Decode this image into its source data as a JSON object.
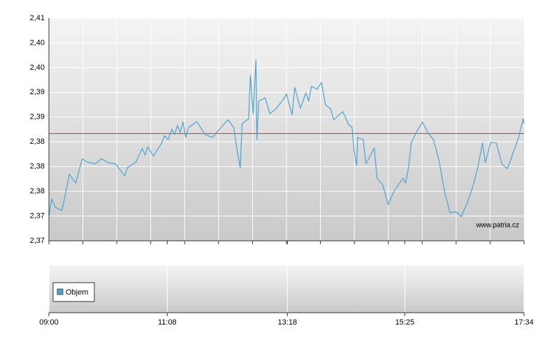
{
  "chart_data": {
    "type": "line",
    "watermark": "www.patria.cz",
    "legend_label": "Objem",
    "reference_line": {
      "value": 2.386,
      "color": "#cc3333"
    },
    "xlim": [
      540,
      1054
    ],
    "xticks": [
      {
        "value": 540,
        "label": "09:00"
      },
      {
        "value": 668,
        "label": "11:08"
      },
      {
        "value": 798,
        "label": "13:18"
      },
      {
        "value": 925,
        "label": "15:25"
      },
      {
        "value": 1054,
        "label": "17:34"
      }
    ],
    "ylim": [
      2.3665,
      2.407
    ],
    "yticks": [
      {
        "value": 2.3665,
        "label": "2,37"
      },
      {
        "value": 2.371,
        "label": "2,37"
      },
      {
        "value": 2.3755,
        "label": "2,38"
      },
      {
        "value": 2.38,
        "label": "2,38"
      },
      {
        "value": 2.3845,
        "label": "2,38"
      },
      {
        "value": 2.389,
        "label": "2,39"
      },
      {
        "value": 2.3935,
        "label": "2,39"
      },
      {
        "value": 2.398,
        "label": "2,40"
      },
      {
        "value": 2.4025,
        "label": "2,40"
      },
      {
        "value": 2.407,
        "label": "2,41"
      }
    ],
    "grid": true,
    "series": [
      {
        "color": "#4aa3d2",
        "x": [
          540,
          543,
          547,
          554,
          560,
          562,
          569,
          576,
          582,
          590,
          597,
          604,
          612,
          622,
          625,
          634,
          641,
          644,
          647,
          653,
          662,
          665,
          669,
          673,
          676,
          679,
          682,
          685,
          688,
          691,
          700,
          709,
          717,
          726,
          734,
          740,
          743,
          747,
          749,
          756,
          758,
          761,
          764,
          765,
          767,
          774,
          779,
          786,
          794,
          797,
          803,
          806,
          812,
          818,
          821,
          824,
          830,
          835,
          839,
          845,
          848,
          858,
          864,
          868,
          870,
          873,
          874,
          880,
          883,
          892,
          895,
          901,
          907,
          913,
          923,
          926,
          929,
          932,
          938,
          944,
          950,
          956,
          962,
          968,
          974,
          980,
          986,
          992,
          998,
          1004,
          1009,
          1012,
          1018,
          1024,
          1030,
          1036,
          1042,
          1048,
          1053,
          1054
        ],
        "values": [
          2.3709,
          2.3741,
          2.3726,
          2.372,
          2.3767,
          2.3786,
          2.377,
          2.3814,
          2.3808,
          2.3805,
          2.3814,
          2.3807,
          2.3805,
          2.3783,
          2.3798,
          2.3808,
          2.3833,
          2.3821,
          2.3836,
          2.3819,
          2.3843,
          2.3856,
          2.3849,
          2.3868,
          2.3858,
          2.3875,
          2.3862,
          2.3881,
          2.3853,
          2.3871,
          2.3882,
          2.3858,
          2.3853,
          2.3871,
          2.3885,
          2.3871,
          2.3836,
          2.3797,
          2.3878,
          2.3887,
          2.3966,
          2.3896,
          2.3994,
          2.3849,
          2.3919,
          2.3925,
          2.3896,
          2.3906,
          2.3923,
          2.3932,
          2.3894,
          2.3944,
          2.3906,
          2.3934,
          2.3919,
          2.3946,
          2.3941,
          2.3953,
          2.3913,
          2.3904,
          2.3885,
          2.39,
          2.3877,
          2.3871,
          2.383,
          2.3802,
          2.3853,
          2.3849,
          2.3805,
          2.3834,
          2.3779,
          2.3767,
          2.3731,
          2.3754,
          2.3779,
          2.377,
          2.3798,
          2.3843,
          2.3864,
          2.3881,
          2.3862,
          2.3849,
          2.3811,
          2.3754,
          2.3716,
          2.3718,
          2.3709,
          2.3732,
          2.376,
          2.3798,
          2.3843,
          2.3807,
          2.3844,
          2.3843,
          2.3805,
          2.3796,
          2.3824,
          2.3852,
          2.3887,
          2.3878
        ]
      }
    ]
  }
}
